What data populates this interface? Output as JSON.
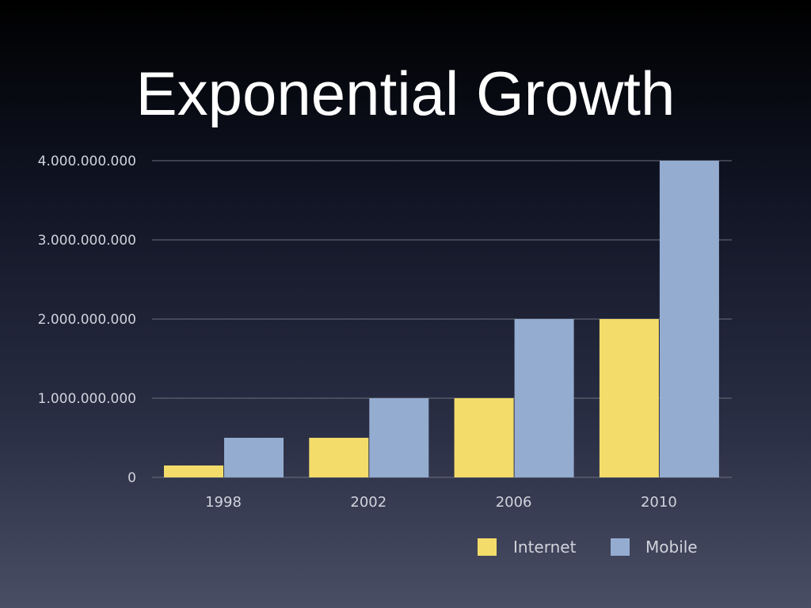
{
  "title": "Exponential Growth",
  "colors": {
    "internet": "#f4dc6a",
    "mobile": "#94acd0",
    "grid": "#6b7080",
    "text": "#d0d3dc"
  },
  "chart_data": {
    "type": "bar",
    "title": "Exponential Growth",
    "categories": [
      "1998",
      "2002",
      "2006",
      "2010"
    ],
    "series": [
      {
        "name": "Internet",
        "values": [
          150000000,
          500000000,
          1000000000,
          2000000000
        ]
      },
      {
        "name": "Mobile",
        "values": [
          500000000,
          1000000000,
          2000000000,
          4000000000
        ]
      }
    ],
    "y_ticks": [
      "0",
      "1.000.000.000",
      "2.000.000.000",
      "3.000.000.000",
      "4.000.000.000"
    ],
    "ylim": [
      0,
      4000000000
    ],
    "xlabel": "",
    "ylabel": "",
    "grid": true,
    "legend_position": "bottom-right"
  }
}
